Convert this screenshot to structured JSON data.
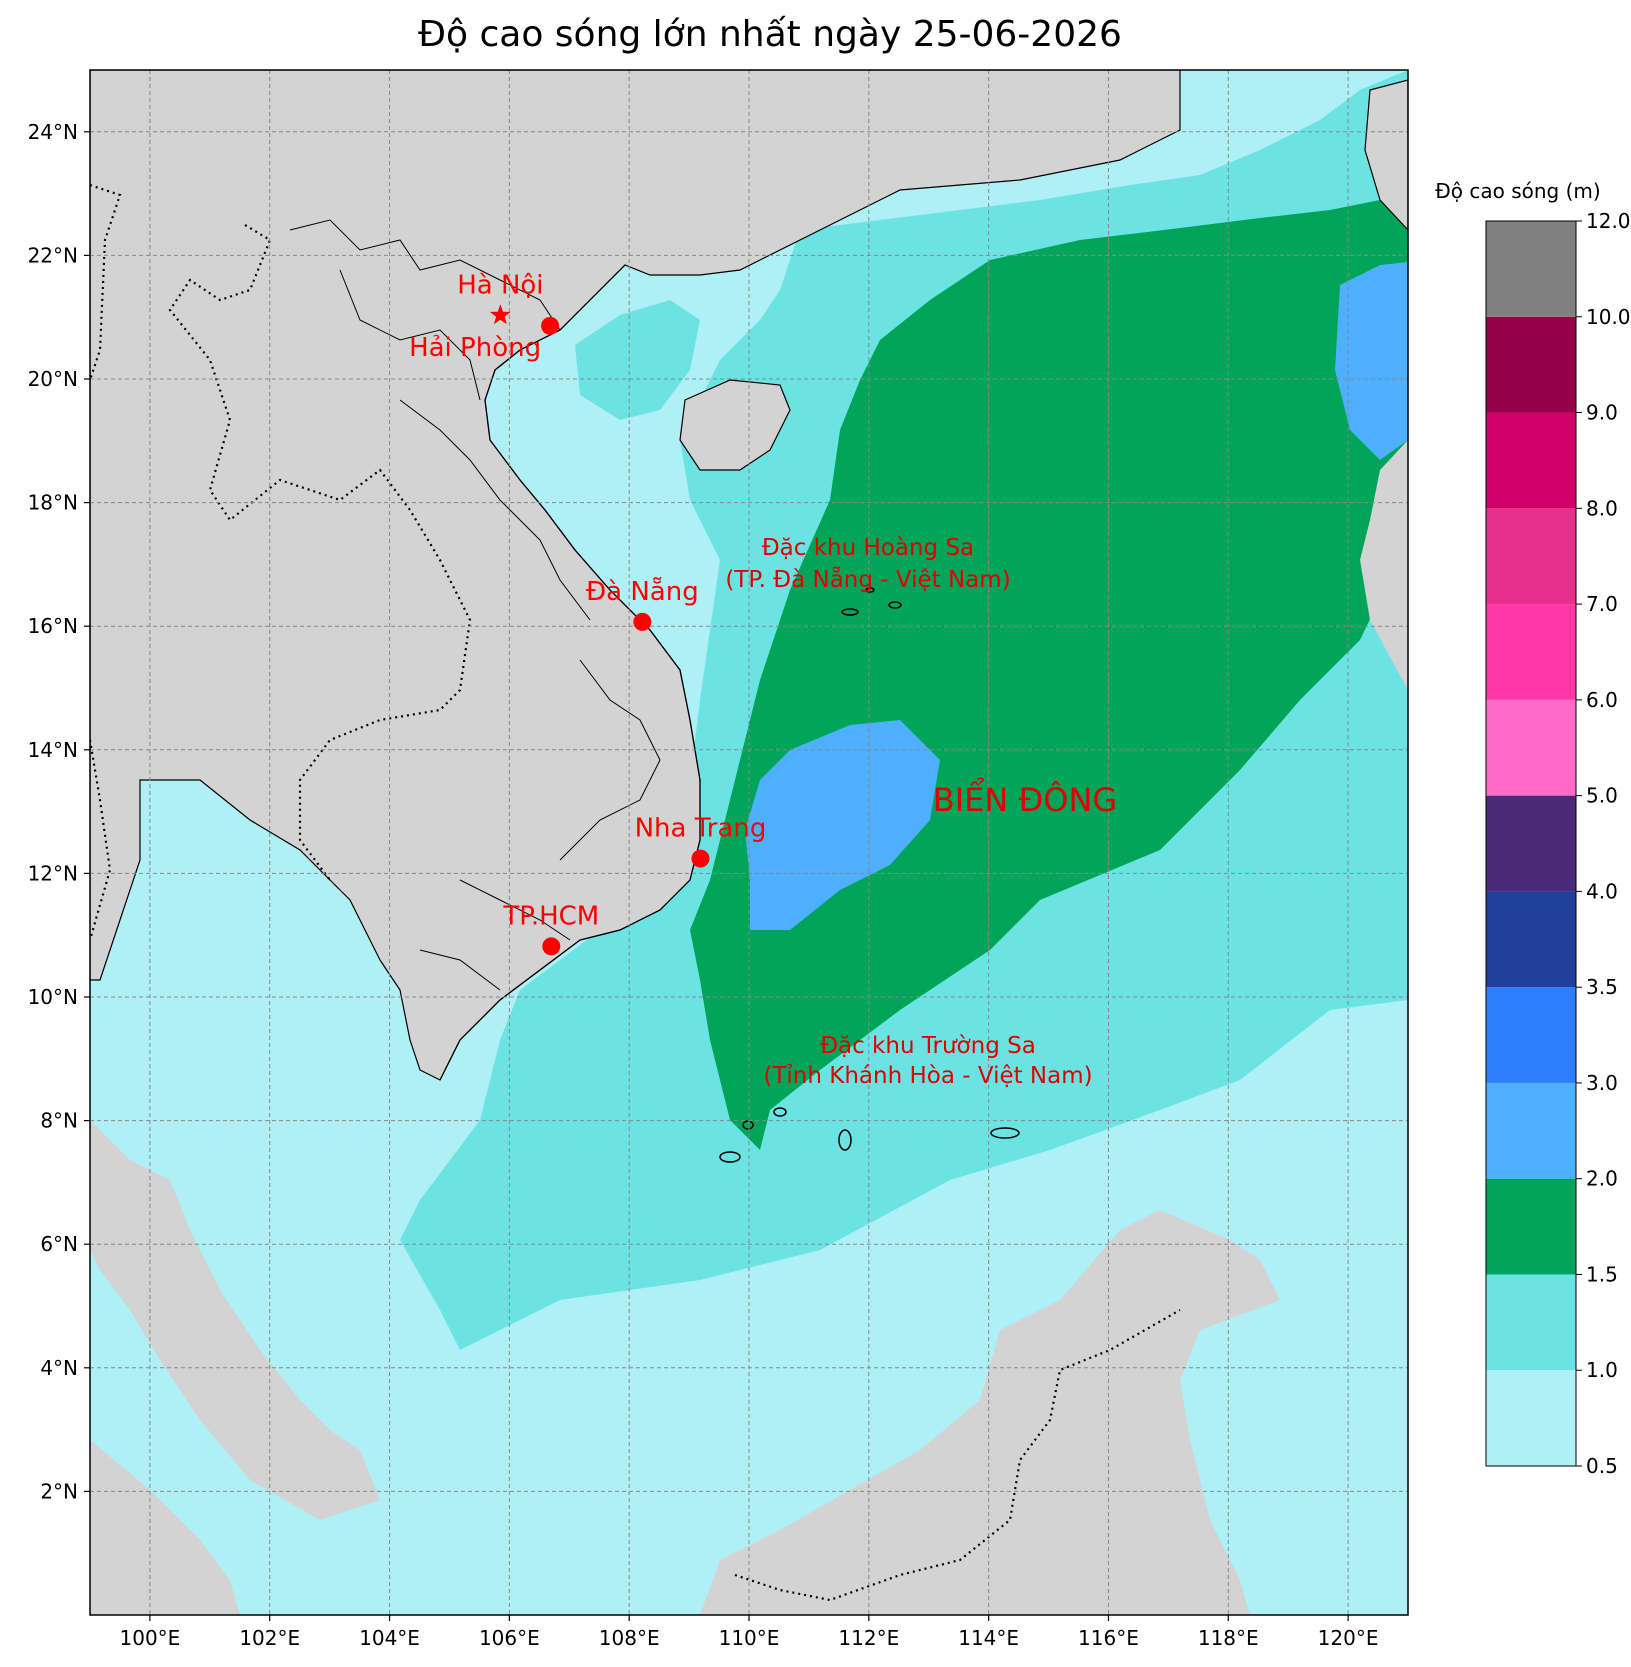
{
  "title": "Độ cao sóng lớn nhất ngày 25-06-2026",
  "map": {
    "lon_range": [
      99,
      121
    ],
    "lat_range": [
      0,
      25
    ],
    "x_ticks": [
      {
        "lon": 100,
        "label": "100°E"
      },
      {
        "lon": 102,
        "label": "102°E"
      },
      {
        "lon": 104,
        "label": "104°E"
      },
      {
        "lon": 106,
        "label": "106°E"
      },
      {
        "lon": 108,
        "label": "108°E"
      },
      {
        "lon": 110,
        "label": "110°E"
      },
      {
        "lon": 112,
        "label": "112°E"
      },
      {
        "lon": 114,
        "label": "114°E"
      },
      {
        "lon": 116,
        "label": "116°E"
      },
      {
        "lon": 118,
        "label": "118°E"
      },
      {
        "lon": 120,
        "label": "120°E"
      }
    ],
    "y_ticks": [
      {
        "lat": 2,
        "label": "2°N"
      },
      {
        "lat": 4,
        "label": "4°N"
      },
      {
        "lat": 6,
        "label": "6°N"
      },
      {
        "lat": 8,
        "label": "8°N"
      },
      {
        "lat": 10,
        "label": "10°N"
      },
      {
        "lat": 12,
        "label": "12°N"
      },
      {
        "lat": 14,
        "label": "14°N"
      },
      {
        "lat": 16,
        "label": "16°N"
      },
      {
        "lat": 18,
        "label": "18°N"
      },
      {
        "lat": 20,
        "label": "20°N"
      },
      {
        "lat": 22,
        "label": "22°N"
      },
      {
        "lat": 24,
        "label": "24°N"
      }
    ],
    "grid": true,
    "land_color": "#d3d3d3"
  },
  "cities": [
    {
      "name": "Hà Nội",
      "lon": 105.85,
      "lat": 21.03,
      "marker": "star"
    },
    {
      "name": "Hải Phòng",
      "lon": 106.68,
      "lat": 20.86,
      "marker": "dot"
    },
    {
      "name": "Đà Nẵng",
      "lon": 108.22,
      "lat": 16.07,
      "marker": "dot"
    },
    {
      "name": "Nha Trang",
      "lon": 109.19,
      "lat": 12.24,
      "marker": "dot"
    },
    {
      "name": "TP.HCM",
      "lon": 106.7,
      "lat": 10.82,
      "marker": "dot"
    }
  ],
  "annotations": [
    {
      "lines": [
        "Đặc khu Hoàng Sa",
        "(TP. Đà Nẵng - Việt Nam)"
      ]
    },
    {
      "lines": [
        "Đặc khu Trường Sa",
        "(Tỉnh Khánh Hòa - Việt Nam)"
      ]
    },
    {
      "lines": [
        "BIỂN ĐÔNG"
      ]
    }
  ],
  "colorbar": {
    "title": "Độ cao sóng (m)",
    "levels": [
      {
        "label": "0.5",
        "color": "#aff0f6"
      },
      {
        "label": "1.0",
        "color": "#6ce3e3"
      },
      {
        "label": "1.5",
        "color": "#00a55a"
      },
      {
        "label": "2.0",
        "color": "#4daffe"
      },
      {
        "label": "3.0",
        "color": "#2e7dfd"
      },
      {
        "label": "3.5",
        "color": "#1f3f9b"
      },
      {
        "label": "4.0",
        "color": "#4a2a78"
      },
      {
        "label": "5.0",
        "color": "#ff6ac8"
      },
      {
        "label": "6.0",
        "color": "#ff37a9"
      },
      {
        "label": "7.0",
        "color": "#e6308c"
      },
      {
        "label": "8.0",
        "color": "#d10068"
      },
      {
        "label": "9.0",
        "color": "#99004c"
      },
      {
        "label": "10.0",
        "color": "#808080"
      },
      {
        "label": "12.0",
        "color": null
      }
    ]
  }
}
